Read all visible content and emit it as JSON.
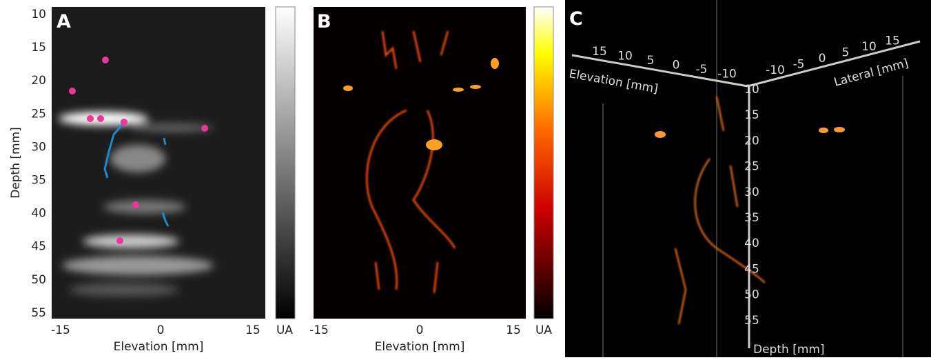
{
  "panels": [
    {
      "label": "A",
      "y_label": "Depth [mm]",
      "y_ticks": [
        "10",
        "15",
        "20",
        "25",
        "30",
        "35",
        "40",
        "45",
        "50",
        "55"
      ],
      "x_label": "Elevation [mm]",
      "x_ticks": [
        "-15",
        "0",
        "15"
      ],
      "colorbar_label": "UA"
    },
    {
      "label": "B",
      "x_label": "Elevation [mm]",
      "x_ticks": [
        "-15",
        "0",
        "15"
      ],
      "colorbar_label": "UA"
    },
    {
      "label": "C",
      "elevation_label": "Elevation [mm]",
      "elevation_ticks": [
        "15",
        "10",
        "5",
        "0",
        "-5",
        "-10"
      ],
      "lateral_label": "Lateral [mm]",
      "lateral_ticks": [
        "-10",
        "-5",
        "0",
        "5",
        "10",
        "15"
      ],
      "depth_label": "Depth  [mm]",
      "depth_ticks": [
        "10",
        "15",
        "20",
        "25",
        "30",
        "35",
        "40",
        "45",
        "50",
        "55"
      ]
    }
  ]
}
